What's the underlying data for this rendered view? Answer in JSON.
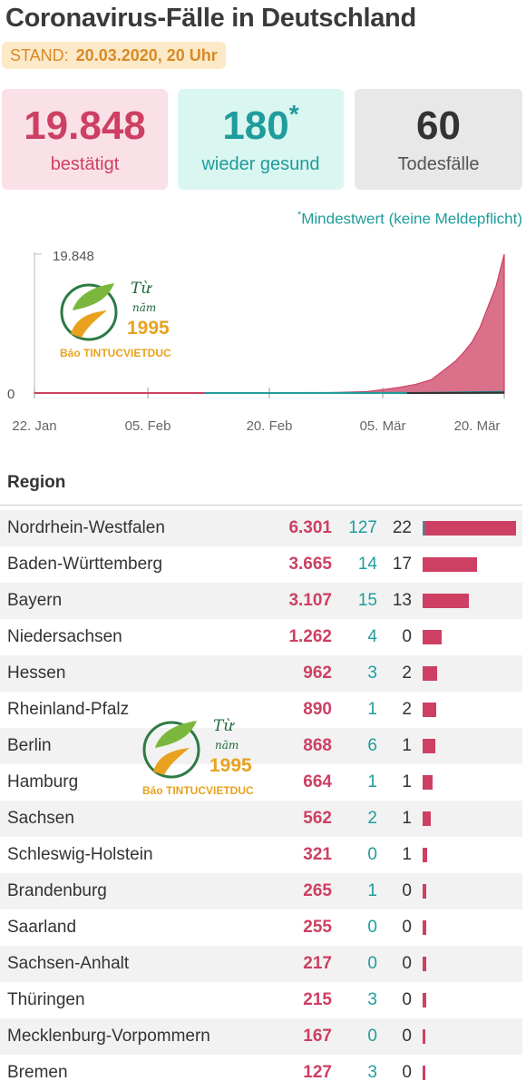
{
  "header": {
    "title": "Coronavirus-Fälle in Deutschland",
    "stand_label": "STAND:",
    "stand_date": "20.03.2020, 20 Uhr"
  },
  "summary": {
    "confirmed": {
      "value": "19.848",
      "label": "bestätigt"
    },
    "recovered": {
      "value": "180",
      "marker": "*",
      "label": "wieder gesund"
    },
    "deaths": {
      "value": "60",
      "label": "Todesfälle"
    }
  },
  "footnote": {
    "marker": "*",
    "text": "Mindestwert (keine Meldepflicht)"
  },
  "watermark": {
    "line1": "Từ",
    "line2": "năm",
    "year": "1995",
    "brand": "Báo TINTUCVIETDUC"
  },
  "colors": {
    "confirmed": "#cd4063",
    "recovered": "#1f9c9c",
    "deaths": "#333333"
  },
  "region_header": "Region",
  "chart_data": [
    {
      "type": "area",
      "title": "",
      "x_ticks": [
        "22. Jan",
        "05. Feb",
        "20. Feb",
        "05. Mär",
        "20. Mär"
      ],
      "x_range": [
        "2020-01-22",
        "2020-03-20"
      ],
      "y_ticks": [
        "0",
        "19.848"
      ],
      "ylim": [
        0,
        19848
      ],
      "series": [
        {
          "name": "bestätigt",
          "x": [
            "2020-01-22",
            "2020-02-25",
            "2020-02-28",
            "2020-03-01",
            "2020-03-03",
            "2020-03-05",
            "2020-03-07",
            "2020-03-09",
            "2020-03-11",
            "2020-03-13",
            "2020-03-14",
            "2020-03-15",
            "2020-03-16",
            "2020-03-17",
            "2020-03-18",
            "2020-03-19",
            "2020-03-20"
          ],
          "values": [
            16,
            17,
            60,
            130,
            196,
            482,
            800,
            1224,
            1908,
            3675,
            4585,
            5813,
            7272,
            9360,
            12327,
            15320,
            19848
          ]
        },
        {
          "name": "wieder gesund",
          "x": [
            "2020-02-12",
            "2020-03-10",
            "2020-03-20"
          ],
          "values": [
            0,
            16,
            180
          ]
        },
        {
          "name": "Todesfälle",
          "x": [
            "2020-03-08",
            "2020-03-14",
            "2020-03-20"
          ],
          "values": [
            0,
            9,
            60
          ]
        }
      ]
    },
    {
      "type": "table",
      "columns": [
        "Region",
        "bestätigt",
        "wieder gesund",
        "Todesfälle"
      ],
      "rows": [
        {
          "region": "Nordrhein-Westfalen",
          "cases": "6.301",
          "cases_value": 6301,
          "recovered": "127",
          "deaths": "22"
        },
        {
          "region": "Baden-Württemberg",
          "cases": "3.665",
          "cases_value": 3665,
          "recovered": "14",
          "deaths": "17"
        },
        {
          "region": "Bayern",
          "cases": "3.107",
          "cases_value": 3107,
          "recovered": "15",
          "deaths": "13"
        },
        {
          "region": "Niedersachsen",
          "cases": "1.262",
          "cases_value": 1262,
          "recovered": "4",
          "deaths": "0"
        },
        {
          "region": "Hessen",
          "cases": "962",
          "cases_value": 962,
          "recovered": "3",
          "deaths": "2"
        },
        {
          "region": "Rheinland-Pfalz",
          "cases": "890",
          "cases_value": 890,
          "recovered": "1",
          "deaths": "2"
        },
        {
          "region": "Berlin",
          "cases": "868",
          "cases_value": 868,
          "recovered": "6",
          "deaths": "1"
        },
        {
          "region": "Hamburg",
          "cases": "664",
          "cases_value": 664,
          "recovered": "1",
          "deaths": "1"
        },
        {
          "region": "Sachsen",
          "cases": "562",
          "cases_value": 562,
          "recovered": "2",
          "deaths": "1"
        },
        {
          "region": "Schleswig-Holstein",
          "cases": "321",
          "cases_value": 321,
          "recovered": "0",
          "deaths": "1"
        },
        {
          "region": "Brandenburg",
          "cases": "265",
          "cases_value": 265,
          "recovered": "1",
          "deaths": "0"
        },
        {
          "region": "Saarland",
          "cases": "255",
          "cases_value": 255,
          "recovered": "0",
          "deaths": "0"
        },
        {
          "region": "Sachsen-Anhalt",
          "cases": "217",
          "cases_value": 217,
          "recovered": "0",
          "deaths": "0"
        },
        {
          "region": "Thüringen",
          "cases": "215",
          "cases_value": 215,
          "recovered": "3",
          "deaths": "0"
        },
        {
          "region": "Mecklenburg-Vorpommern",
          "cases": "167",
          "cases_value": 167,
          "recovered": "0",
          "deaths": "0"
        },
        {
          "region": "Bremen",
          "cases": "127",
          "cases_value": 127,
          "recovered": "3",
          "deaths": "0"
        }
      ]
    }
  ]
}
